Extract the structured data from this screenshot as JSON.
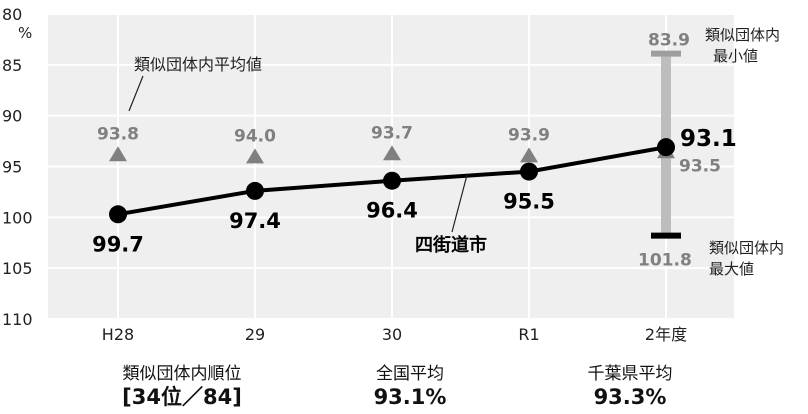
{
  "chart_data": {
    "type": "line",
    "categories": [
      "H28",
      "29",
      "30",
      "R1",
      "2年度"
    ],
    "y_axis_top_label": "80",
    "y_axis_unit": "%",
    "ylim": [
      80,
      110
    ],
    "y_reversed": true,
    "y_ticks": [
      80,
      85,
      90,
      95,
      100,
      105,
      110
    ],
    "grid": true,
    "series": [
      {
        "name": "四街道市",
        "values": [
          99.7,
          97.4,
          96.4,
          95.5,
          93.1
        ],
        "labels": [
          "99.7",
          "97.4",
          "96.4",
          "95.5",
          "93.1"
        ]
      },
      {
        "name": "類似団体内平均値",
        "values": [
          93.8,
          94.0,
          93.7,
          93.9,
          93.5
        ],
        "labels": [
          "93.8",
          "94.0",
          "93.7",
          "93.9",
          "93.5"
        ]
      }
    ],
    "range": {
      "category": "2年度",
      "min": 83.9,
      "max": 101.8,
      "min_label_value": "83.9",
      "max_label_value": "101.8",
      "min_label": [
        "類似団体内",
        "最小値"
      ],
      "max_label": [
        "類似団体内",
        "最大値"
      ]
    },
    "colors": {
      "plot_bg": "#efefef",
      "grid": "#ffffff",
      "city_line": "#000000",
      "avg_marker": "#808080",
      "avg_label": "#808080",
      "range_bar": "#bdbdbd",
      "range_cap_min": "#9e9e9e",
      "range_cap_max": "#000000"
    }
  },
  "summary": [
    {
      "label": "類似団体内順位",
      "value": "[34位／84]"
    },
    {
      "label": "全国平均",
      "value": "93.1%"
    },
    {
      "label": "千葉県平均",
      "value": "93.3%"
    }
  ]
}
